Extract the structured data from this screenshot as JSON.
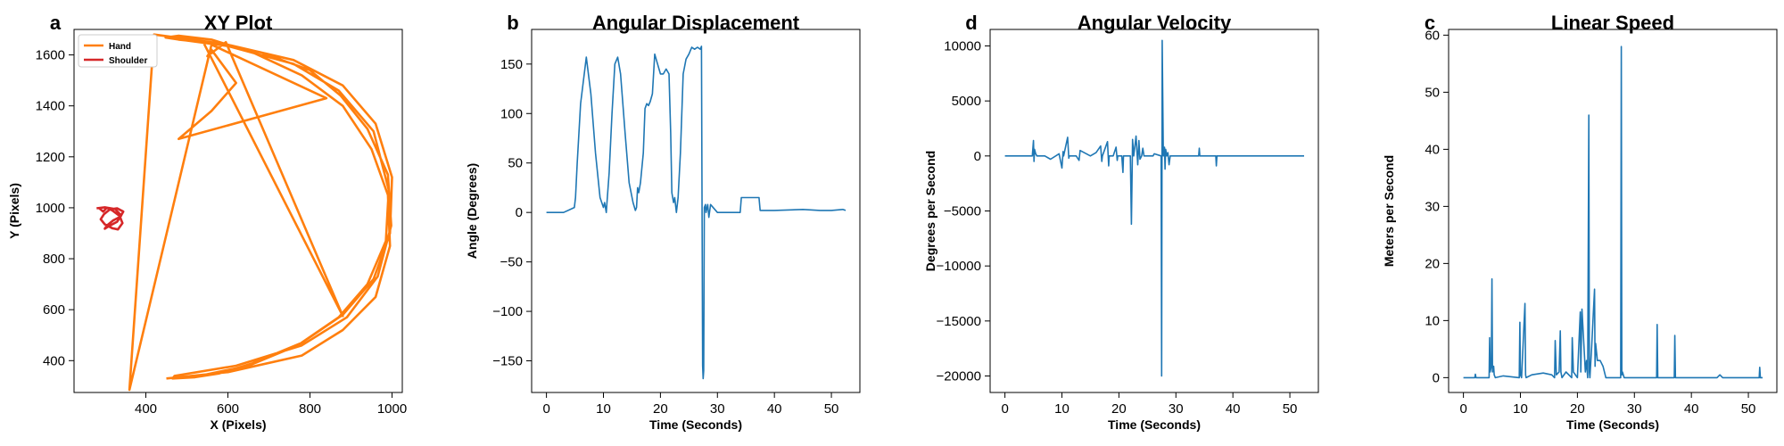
{
  "colors": {
    "hand": "#ff7f0e",
    "shoulder": "#d62728",
    "series": "#1f77b4",
    "axis": "#000000"
  },
  "chart_data": [
    {
      "letter": "a",
      "type": "line",
      "title": "XY Plot",
      "xlabel": "X (Pixels)",
      "ylabel": "Y (Pixels)",
      "xlim": [
        225,
        1025
      ],
      "ylim": [
        275,
        1700
      ],
      "xticks": [
        400,
        600,
        800,
        1000
      ],
      "yticks": [
        400,
        600,
        800,
        1000,
        1200,
        1400,
        1600
      ],
      "grid": false,
      "legend": "top-left",
      "series": [
        {
          "name": "Hand",
          "color": "#ff7f0e",
          "x": [
            450,
            600,
            780,
            880,
            960,
            995,
            990,
            950,
            880,
            780,
            660,
            560,
            480,
            448,
            480,
            600,
            760,
            880,
            960,
            1000,
            995,
            955,
            880,
            780,
            660,
            580,
            520,
            465,
            470,
            620,
            780,
            890,
            965,
            998,
            990,
            940,
            875,
            800,
            680,
            560,
            420,
            360,
            560,
            840,
            480,
            560,
            620,
            560,
            550,
            595,
            880,
            540,
            500,
            455,
            460,
            600,
            760,
            870,
            955,
            992,
            985,
            940,
            870,
            770,
            650,
            530,
            500
          ],
          "y": [
            330,
            355,
            420,
            520,
            650,
            850,
            1050,
            1230,
            1400,
            1520,
            1610,
            1660,
            1675,
            1668,
            1660,
            1640,
            1580,
            1480,
            1330,
            1120,
            900,
            720,
            580,
            470,
            390,
            350,
            335,
            330,
            340,
            380,
            460,
            570,
            730,
            930,
            1130,
            1310,
            1440,
            1540,
            1610,
            1650,
            1680,
            285,
            1640,
            1430,
            1270,
            1380,
            1490,
            1620,
            1595,
            1650,
            575,
            1650,
            1670,
            1672,
            1665,
            1635,
            1565,
            1460,
            1300,
            1070,
            870,
            700,
            570,
            460,
            380,
            340,
            335
          ]
        },
        {
          "name": "Shoulder",
          "color": "#d62728",
          "x": [
            280,
            300,
            325,
            340,
            330,
            310,
            300,
            305,
            320,
            338,
            345,
            330,
            312,
            298,
            290,
            300,
            318,
            332,
            343,
            336,
            318,
            305,
            296,
            285
          ],
          "y": [
            998,
            1002,
            995,
            970,
            945,
            928,
            918,
            930,
            950,
            965,
            985,
            998,
            993,
            975,
            955,
            935,
            920,
            915,
            940,
            968,
            990,
            1000,
            985,
            1000
          ]
        }
      ]
    },
    {
      "letter": "b",
      "type": "line",
      "title": "Angular Displacement",
      "xlabel": "Time (Seconds)",
      "ylabel": "Angle (Degrees)",
      "xlim": [
        -2.6,
        55
      ],
      "ylim": [
        -182,
        185
      ],
      "xticks": [
        0,
        10,
        20,
        30,
        40,
        50
      ],
      "yticks": [
        -150,
        -100,
        -50,
        0,
        50,
        100,
        150
      ],
      "grid": false,
      "series": [
        {
          "color": "#1f77b4",
          "x": [
            0,
            3,
            4.9,
            5.1,
            5.4,
            6,
            7,
            7.8,
            8.6,
            9.4,
            10,
            10.2,
            10.5,
            10.6,
            11,
            11.5,
            12,
            12.5,
            13,
            13.8,
            14.5,
            15.2,
            15.6,
            15.8,
            16,
            16.2,
            16.5,
            17,
            17.3,
            17.6,
            17.9,
            18.2,
            18.6,
            19,
            19.5,
            20,
            20.5,
            21,
            21.5,
            21.8,
            22,
            22.3,
            22.5,
            22.8,
            23.1,
            23.5,
            24,
            24.5,
            25,
            25.5,
            26,
            26.5,
            27,
            27.2,
            27.4,
            27.5,
            27.6,
            27.7,
            27.9,
            28,
            28.3,
            28.5,
            28.8,
            30,
            34,
            34.2,
            37.3,
            37.5,
            40,
            45,
            48,
            50,
            52,
            52.5
          ],
          "y": [
            0,
            0,
            5,
            15,
            50,
            110,
            157,
            120,
            60,
            15,
            5,
            10,
            0,
            8,
            40,
            100,
            150,
            157,
            140,
            80,
            30,
            10,
            2,
            5,
            25,
            20,
            30,
            60,
            105,
            110,
            108,
            112,
            120,
            160,
            150,
            140,
            140,
            145,
            140,
            80,
            20,
            10,
            15,
            0,
            15,
            60,
            140,
            155,
            160,
            167,
            165,
            167,
            165,
            168,
            -155,
            -168,
            -160,
            5,
            8,
            0,
            8,
            -5,
            8,
            0,
            0,
            15,
            15,
            2,
            2,
            3,
            2,
            2,
            3,
            2
          ]
        }
      ]
    },
    {
      "letter": "d",
      "type": "line",
      "title": "Angular Velocity",
      "xlabel": "Time (Seconds)",
      "ylabel": "Degrees per Second",
      "xlim": [
        -2.6,
        55
      ],
      "ylim": [
        -21500,
        11500
      ],
      "xticks": [
        0,
        10,
        20,
        30,
        40,
        50
      ],
      "yticks": [
        -20000,
        -15000,
        -10000,
        -5000,
        0,
        5000,
        10000
      ],
      "grid": false,
      "series": [
        {
          "color": "#1f77b4",
          "x": [
            0,
            4.8,
            5,
            5.1,
            5.2,
            5.4,
            5.6,
            7,
            8,
            9.5,
            10,
            10.2,
            10.3,
            11,
            11.2,
            11.3,
            12.5,
            13,
            13.2,
            15,
            16,
            16.8,
            17,
            17.1,
            18,
            18.2,
            18.3,
            19,
            19.5,
            19.7,
            19.8,
            20.5,
            20.7,
            20.8,
            22,
            22.2,
            22.4,
            22.6,
            23,
            23.3,
            23.5,
            23.7,
            24,
            24.2,
            24.4,
            25,
            26,
            26.2,
            27.4,
            27.5,
            27.6,
            27.8,
            28,
            28.1,
            28.2,
            28.4,
            28.6,
            28.8,
            29,
            30,
            34,
            34.1,
            34.2,
            37,
            37.1,
            37.2,
            40,
            45,
            50,
            52.5
          ],
          "y": [
            0,
            0,
            1400,
            -500,
            600,
            200,
            0,
            0,
            -300,
            200,
            -1100,
            400,
            0,
            1700,
            -200,
            0,
            0,
            -400,
            500,
            0,
            300,
            900,
            -500,
            0,
            1300,
            -900,
            0,
            0,
            800,
            -400,
            0,
            0,
            -1500,
            0,
            0,
            -6200,
            1500,
            0,
            1800,
            -800,
            1400,
            -300,
            0,
            700,
            0,
            0,
            0,
            200,
            0,
            -20000,
            10500,
            0,
            800,
            -1200,
            600,
            0,
            300,
            -800,
            0,
            0,
            0,
            700,
            0,
            0,
            -900,
            0,
            0,
            0,
            0,
            0
          ]
        }
      ]
    },
    {
      "letter": "c",
      "type": "line",
      "title": "Linear Speed",
      "xlabel": "Time (Seconds)",
      "ylabel": "Meters per Second",
      "xlim": [
        -2.6,
        55
      ],
      "ylim": [
        -2.6,
        61
      ],
      "xticks": [
        0,
        10,
        20,
        30,
        40,
        50
      ],
      "yticks": [
        0,
        10,
        20,
        30,
        40,
        50,
        60
      ],
      "grid": false,
      "series": [
        {
          "color": "#1f77b4",
          "x": [
            0,
            2,
            2.1,
            2.2,
            4.5,
            4.6,
            4.7,
            4.9,
            5.0,
            5.1,
            5.3,
            5.4,
            5.6,
            7,
            9.8,
            9.9,
            10,
            10.2,
            10.8,
            10.9,
            11,
            12,
            14,
            15.5,
            16,
            16.1,
            16.3,
            16.8,
            17,
            17.1,
            17.3,
            18,
            19,
            19.1,
            19.3,
            20,
            20.5,
            20.6,
            20.8,
            21.4,
            21.6,
            21.8,
            22,
            22.1,
            22.2,
            22.5,
            23,
            23.1,
            23.2,
            23.5,
            24,
            24.5,
            25,
            25.5,
            27.6,
            27.7,
            27.8,
            27.9,
            28.2,
            30,
            33.9,
            34,
            34.1,
            37,
            37.1,
            37.2,
            40,
            44.5,
            45,
            45.5,
            50,
            51.9,
            52,
            52.1,
            52.5
          ],
          "y": [
            0,
            0,
            0.6,
            0,
            0,
            7,
            1,
            2,
            17.3,
            1,
            2,
            0.5,
            0,
            0.3,
            0,
            9.7,
            0.5,
            0,
            13,
            0.5,
            0,
            0.5,
            0.8,
            0.5,
            0,
            6.5,
            0.5,
            1,
            8.2,
            1,
            0,
            1,
            0,
            7,
            1,
            0,
            11.5,
            1,
            12,
            1,
            3,
            0,
            46,
            1,
            0,
            5.5,
            15.5,
            2,
            6,
            3,
            3,
            2,
            0,
            0,
            0,
            58,
            0.5,
            1,
            0,
            0,
            0,
            9.3,
            0,
            0,
            7.4,
            0,
            0,
            0,
            0.5,
            0,
            0,
            0,
            1.8,
            0,
            0
          ]
        }
      ]
    }
  ]
}
